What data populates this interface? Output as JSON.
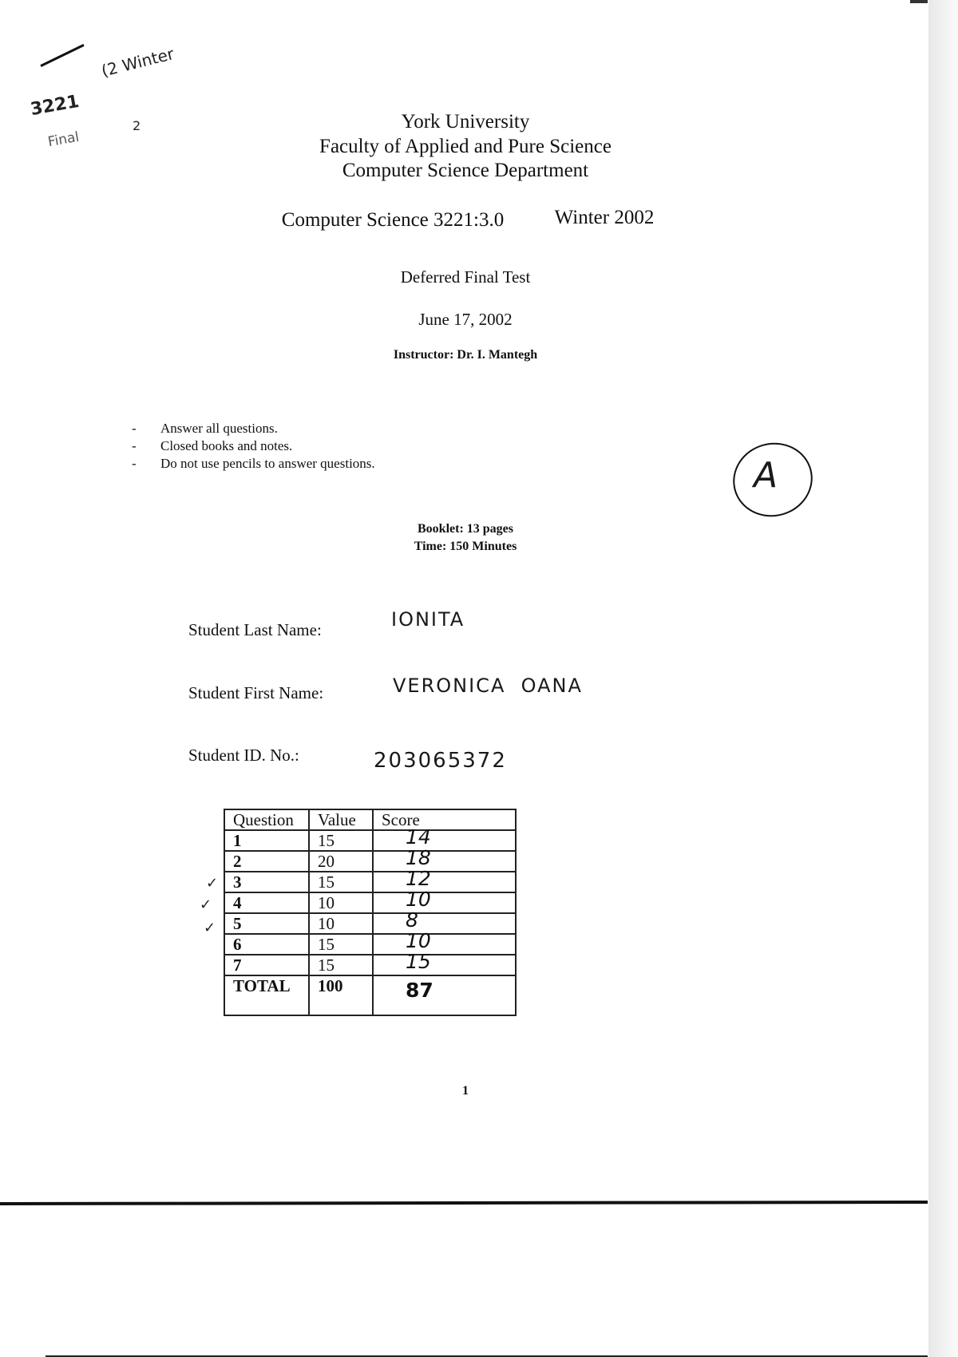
{
  "margin_notes": {
    "course": "3221",
    "term": "(2 Winter",
    "type": "Final",
    "mark": "2"
  },
  "header": {
    "university": "York University",
    "faculty": "Faculty of Applied and Pure Science",
    "department": "Computer Science Department",
    "course": "Computer Science 3221:3.0",
    "term": "Winter 2002",
    "test_title": "Deferred Final Test",
    "date": "June 17, 2002",
    "instructor": "Instructor:  Dr. I. Mantegh"
  },
  "instructions": [
    "Answer all questions.",
    "Closed books and notes.",
    "Do not use pencils to answer questions."
  ],
  "version_mark": "A",
  "booklet": {
    "pages": "Booklet: 13 pages",
    "time": "Time:  150 Minutes"
  },
  "student": {
    "last_name_label": "Student Last Name:",
    "last_name": "IONITA",
    "first_name_label": "Student First Name:",
    "first_name": "VERONICA  OANA",
    "id_label": "Student ID. No.:",
    "id": "203065372"
  },
  "score_table": {
    "headers": [
      "Question",
      "Value",
      "Score"
    ],
    "rows": [
      {
        "question": "1",
        "value": "15",
        "score": "14",
        "checked": false
      },
      {
        "question": "2",
        "value": "20",
        "score": "18",
        "checked": false
      },
      {
        "question": "3",
        "value": "15",
        "score": "12",
        "checked": true
      },
      {
        "question": "4",
        "value": "10",
        "score": "10",
        "checked": true
      },
      {
        "question": "5",
        "value": "10",
        "score": "8",
        "checked": true
      },
      {
        "question": "6",
        "value": "15",
        "score": "10",
        "checked": false
      },
      {
        "question": "7",
        "value": "15",
        "score": "15",
        "checked": false
      }
    ],
    "total": {
      "label": "TOTAL",
      "value": "100",
      "score": "87"
    },
    "check_mark": "✓"
  },
  "page_number": "1"
}
